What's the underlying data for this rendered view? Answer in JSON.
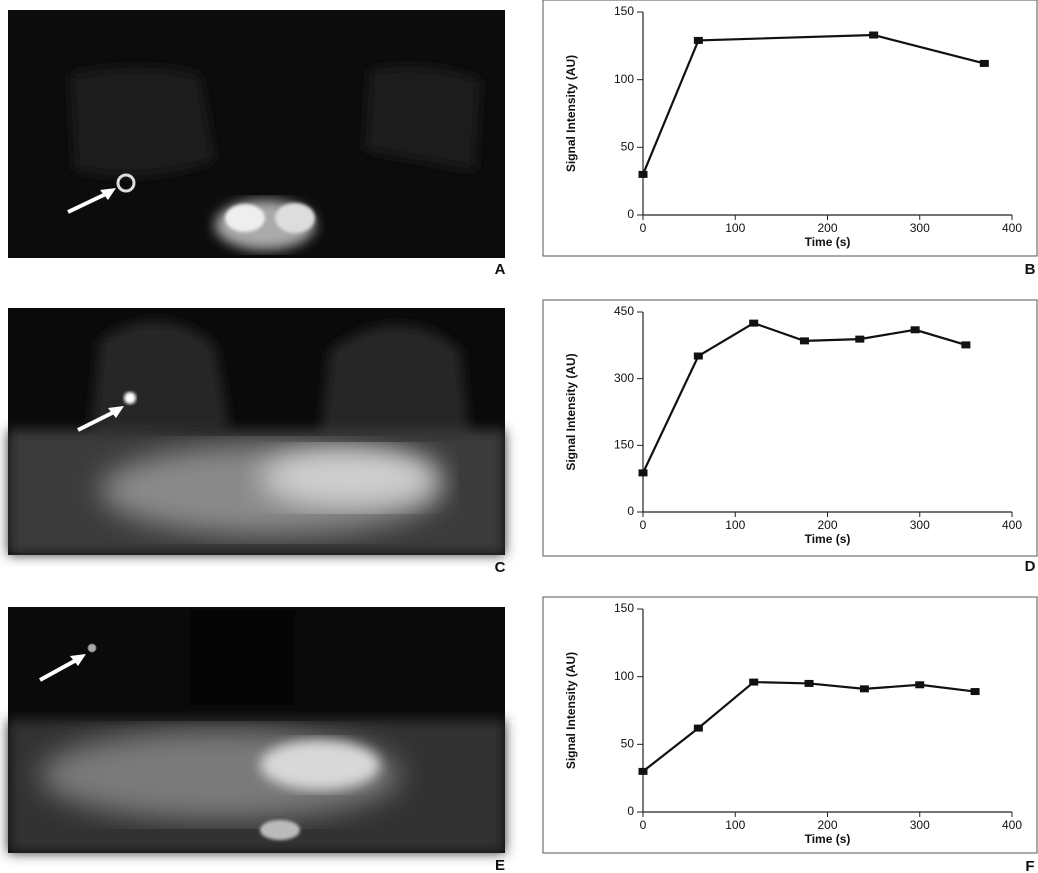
{
  "image_panels": [
    {
      "label": "A"
    },
    {
      "label": "C"
    },
    {
      "label": "E"
    }
  ],
  "chart_data": [
    {
      "type": "line",
      "panel_label": "B",
      "xlabel": "Time (s)",
      "ylabel": "Signal Intensity (AU)",
      "x": [
        0,
        60,
        250,
        370
      ],
      "values": [
        30,
        129,
        133,
        112
      ],
      "color": "#111111",
      "xlim": [
        0,
        400
      ],
      "xticks": [
        0,
        100,
        200,
        300,
        400
      ],
      "ylim": [
        0,
        150
      ],
      "yticks": [
        0,
        50,
        100,
        150
      ]
    },
    {
      "type": "line",
      "panel_label": "D",
      "xlabel": "Time (s)",
      "ylabel": "Signal Intensity (AU)",
      "x": [
        0,
        60,
        120,
        175,
        235,
        295,
        350
      ],
      "values": [
        88,
        351,
        425,
        385,
        389,
        410,
        376
      ],
      "color": "#111111",
      "xlim": [
        0,
        400
      ],
      "xticks": [
        0,
        100,
        200,
        300,
        400
      ],
      "ylim": [
        0,
        450
      ],
      "yticks": [
        0,
        150,
        300,
        450
      ]
    },
    {
      "type": "line",
      "panel_label": "F",
      "xlabel": "Time (s)",
      "ylabel": "Signal Intensity (AU)",
      "x": [
        0,
        60,
        120,
        180,
        240,
        300,
        360
      ],
      "values": [
        30,
        62,
        96,
        95,
        91,
        94,
        89
      ],
      "color": "#111111",
      "xlim": [
        0,
        400
      ],
      "xticks": [
        0,
        100,
        200,
        300,
        400
      ],
      "ylim": [
        0,
        150
      ],
      "yticks": [
        0,
        50,
        100,
        150
      ]
    }
  ]
}
